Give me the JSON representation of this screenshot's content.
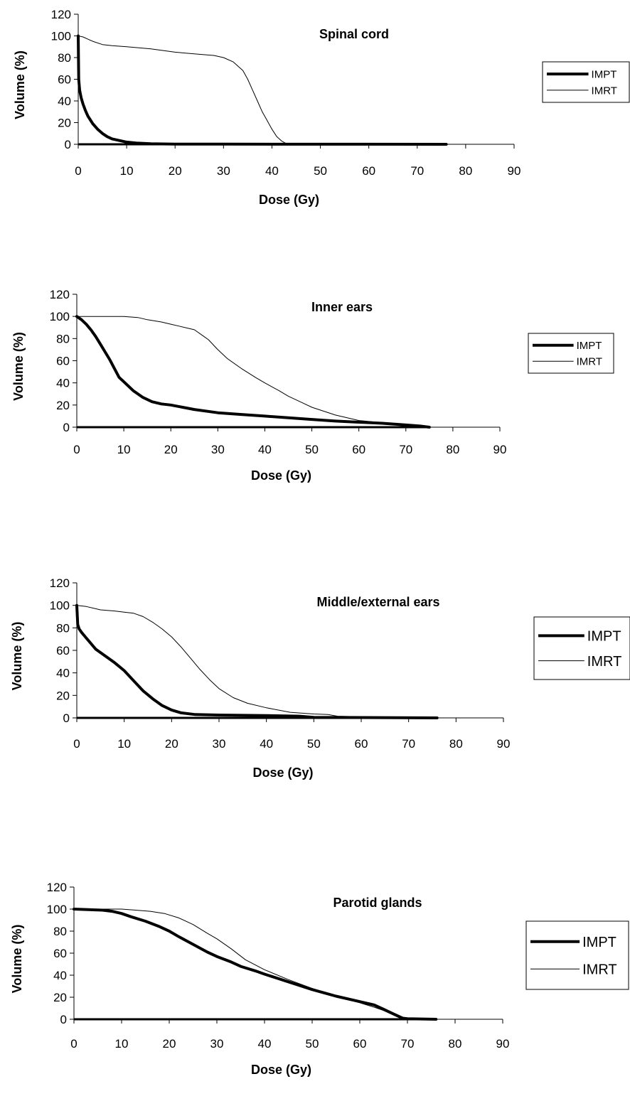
{
  "chart_data": [
    {
      "type": "line",
      "title": "Spinal cord",
      "xlabel": "Dose (Gy)",
      "ylabel": "Volume (%)",
      "xlim": [
        0,
        90
      ],
      "ylim": [
        0,
        120
      ],
      "xticks": [
        "0",
        "10",
        "20",
        "30",
        "40",
        "50",
        "60",
        "70",
        "80",
        "90"
      ],
      "yticks": [
        "0",
        "20",
        "40",
        "60",
        "80",
        "100",
        "120"
      ],
      "legend_position": "right",
      "series": [
        {
          "name": "IMPT",
          "style": "thick",
          "x": [
            0,
            0.1,
            0.3,
            0.6,
            1,
            1.5,
            2,
            3,
            4,
            5,
            6,
            7,
            8,
            10,
            12,
            15,
            20,
            30,
            76
          ],
          "y": [
            100,
            60,
            50,
            43,
            37,
            31,
            26,
            19,
            14,
            10,
            7,
            5,
            4,
            2,
            1.2,
            0.5,
            0.2,
            0.1,
            0
          ]
        },
        {
          "name": "IMRT",
          "style": "thin",
          "x": [
            0,
            1,
            2,
            3,
            5,
            7,
            10,
            15,
            20,
            25,
            28,
            30,
            32,
            34,
            35,
            36,
            37,
            38,
            39,
            40,
            41,
            42,
            43,
            50,
            60,
            76
          ],
          "y": [
            100,
            99,
            97,
            95,
            92,
            91,
            90,
            88,
            85,
            83,
            82,
            80,
            76,
            68,
            60,
            50,
            40,
            30,
            22,
            14,
            7,
            3,
            0.5,
            0.3,
            0.2,
            0
          ]
        }
      ]
    },
    {
      "type": "line",
      "title": "Inner ears",
      "xlabel": "Dose (Gy)",
      "ylabel": "Volume (%)",
      "xlim": [
        0,
        90
      ],
      "ylim": [
        0,
        120
      ],
      "xticks": [
        "0",
        "10",
        "20",
        "30",
        "40",
        "50",
        "60",
        "70",
        "80",
        "90"
      ],
      "yticks": [
        "0",
        "20",
        "40",
        "60",
        "80",
        "100",
        "120"
      ],
      "legend_position": "right",
      "series": [
        {
          "name": "IMPT",
          "style": "thick",
          "x": [
            0,
            1,
            2,
            3,
            4,
            5,
            6,
            7,
            8,
            9,
            10,
            12,
            14,
            16,
            18,
            20,
            25,
            30,
            35,
            40,
            45,
            50,
            55,
            60,
            65,
            70,
            73,
            75
          ],
          "y": [
            100,
            97,
            93,
            88,
            82,
            75,
            68,
            61,
            53,
            45,
            41,
            33,
            27,
            23,
            21,
            20,
            16,
            13,
            11.5,
            10,
            8.5,
            7,
            5.5,
            4.5,
            3.5,
            2,
            1,
            0
          ]
        },
        {
          "name": "IMRT",
          "style": "thin",
          "x": [
            0,
            5,
            10,
            13,
            15,
            18,
            20,
            22,
            25,
            27,
            28,
            30,
            32,
            35,
            38,
            40,
            43,
            45,
            48,
            50,
            55,
            60,
            65,
            70,
            75
          ],
          "y": [
            100,
            100,
            100,
            99,
            97,
            95,
            93,
            91,
            88,
            82,
            79,
            70,
            62,
            53,
            45,
            40,
            33,
            28,
            22,
            18,
            11,
            6,
            4,
            2,
            0
          ]
        }
      ]
    },
    {
      "type": "line",
      "title": "Middle/external ears",
      "xlabel": "Dose (Gy)",
      "ylabel": "Volume (%)",
      "xlim": [
        0,
        90
      ],
      "ylim": [
        0,
        120
      ],
      "xticks": [
        "0",
        "10",
        "20",
        "30",
        "40",
        "50",
        "60",
        "70",
        "80",
        "90"
      ],
      "yticks": [
        "0",
        "20",
        "40",
        "60",
        "80",
        "100",
        "120"
      ],
      "legend_position": "right",
      "series": [
        {
          "name": "IMPT",
          "style": "thick",
          "x": [
            0,
            0.2,
            0.5,
            1,
            2,
            3,
            4,
            6,
            8,
            10,
            12,
            14,
            16,
            18,
            20,
            22,
            25,
            30,
            40,
            47,
            50,
            76
          ],
          "y": [
            100,
            83,
            79,
            76,
            71,
            66,
            61,
            55,
            49,
            42,
            33,
            24,
            17,
            11,
            7,
            4.5,
            3,
            2.5,
            2,
            1.5,
            0.5,
            0
          ]
        },
        {
          "name": "IMRT",
          "style": "thin",
          "x": [
            0,
            2,
            5,
            8,
            10,
            12,
            14,
            16,
            18,
            20,
            22,
            24,
            26,
            28,
            30,
            33,
            36,
            40,
            45,
            50,
            53,
            55,
            60,
            70,
            76
          ],
          "y": [
            100,
            99,
            96,
            95,
            94,
            93,
            90,
            85,
            79,
            72,
            63,
            53,
            43,
            34,
            26,
            18,
            13,
            9,
            5,
            3.5,
            3,
            1.5,
            1,
            0.5,
            0
          ]
        }
      ]
    },
    {
      "type": "line",
      "title": "Parotid glands",
      "xlabel": "Dose (Gy)",
      "ylabel": "Volume (%)",
      "xlim": [
        0,
        90
      ],
      "ylim": [
        0,
        120
      ],
      "xticks": [
        "0",
        "10",
        "20",
        "30",
        "40",
        "50",
        "60",
        "70",
        "80",
        "90"
      ],
      "yticks": [
        "0",
        "20",
        "40",
        "60",
        "80",
        "100",
        "120"
      ],
      "legend_position": "right",
      "series": [
        {
          "name": "IMPT",
          "style": "thick",
          "x": [
            0,
            3,
            6,
            8,
            10,
            12,
            15,
            18,
            20,
            22,
            25,
            28,
            30,
            33,
            35,
            38,
            40,
            45,
            50,
            55,
            60,
            63,
            65,
            67,
            69,
            70,
            76
          ],
          "y": [
            100,
            99.5,
            99,
            98,
            96,
            93,
            89,
            84,
            80,
            75,
            68,
            61,
            57,
            52,
            48,
            44,
            41,
            34,
            27,
            21,
            16,
            13,
            9,
            5,
            1,
            0.5,
            0
          ]
        },
        {
          "name": "IMRT",
          "style": "thin",
          "x": [
            0,
            5,
            10,
            13,
            16,
            19,
            22,
            25,
            28,
            30,
            33,
            36,
            40,
            45,
            50,
            55,
            60,
            63,
            65,
            67,
            68,
            70,
            76
          ],
          "y": [
            100,
            100,
            100,
            99,
            98,
            96,
            92,
            86,
            78,
            73,
            64,
            54,
            45,
            36,
            28,
            21,
            15,
            11,
            8,
            4,
            2,
            0.5,
            0
          ]
        }
      ]
    }
  ]
}
